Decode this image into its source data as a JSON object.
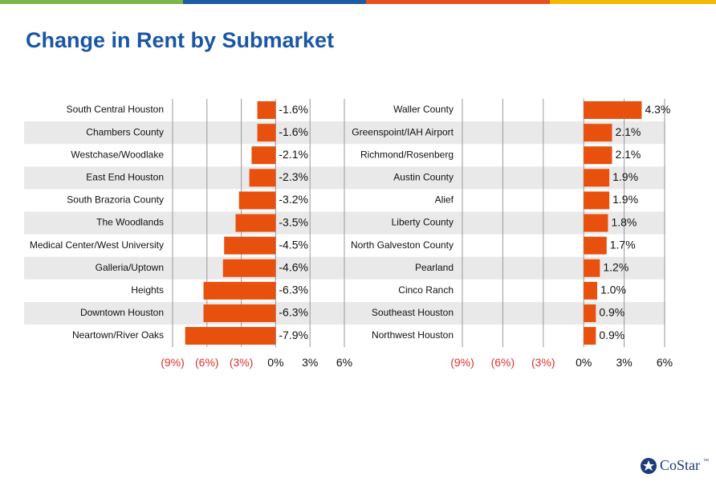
{
  "title": "Change in Rent by Submarket",
  "logo": "CoStar",
  "logo_mark": "™",
  "chart_data": [
    {
      "type": "bar",
      "orientation": "horizontal",
      "categories": [
        "South Central Houston",
        "Chambers County",
        "Westchase/Woodlake",
        "East End Houston",
        "South Brazoria County",
        "The Woodlands",
        "Medical Center/West University",
        "Galleria/Uptown",
        "Heights",
        "Downtown Houston",
        "Neartown/River Oaks"
      ],
      "values": [
        -1.6,
        -1.6,
        -2.1,
        -2.3,
        -3.2,
        -3.5,
        -4.5,
        -4.6,
        -6.3,
        -6.3,
        -7.9
      ],
      "value_labels": [
        "-1.6%",
        "-1.6%",
        "-2.1%",
        "-2.3%",
        "-3.2%",
        "-3.5%",
        "-4.5%",
        "-4.6%",
        "-6.3%",
        "-6.3%",
        "-7.9%"
      ],
      "color": "#e8500e",
      "xlim": [
        -9,
        6
      ],
      "xticks": [
        {
          "value": -9,
          "label": "(9%)"
        },
        {
          "value": -6,
          "label": "(6%)"
        },
        {
          "value": -3,
          "label": "(3%)"
        },
        {
          "value": 0,
          "label": "0%"
        },
        {
          "value": 3,
          "label": "3%"
        },
        {
          "value": 6,
          "label": "6%"
        }
      ],
      "grid": true,
      "negative_tick_color": "#e03030"
    },
    {
      "type": "bar",
      "orientation": "horizontal",
      "categories": [
        "Waller County",
        "Greenspoint/IAH Airport",
        "Richmond/Rosenberg",
        "Austin County",
        "Alief",
        "Liberty County",
        "North Galveston County",
        "Pearland",
        "Cinco Ranch",
        "Southeast Houston",
        "Northwest Houston"
      ],
      "values": [
        4.3,
        2.1,
        2.1,
        1.9,
        1.9,
        1.8,
        1.7,
        1.2,
        1.0,
        0.9,
        0.9
      ],
      "value_labels": [
        "4.3%",
        "2.1%",
        "2.1%",
        "1.9%",
        "1.9%",
        "1.8%",
        "1.7%",
        "1.2%",
        "1.0%",
        "0.9%",
        "0.9%"
      ],
      "color": "#e8500e",
      "xlim": [
        -9,
        6
      ],
      "xticks": [
        {
          "value": -9,
          "label": "(9%)"
        },
        {
          "value": -6,
          "label": "(6%)"
        },
        {
          "value": -3,
          "label": "(3%)"
        },
        {
          "value": 0,
          "label": "0%"
        },
        {
          "value": 3,
          "label": "3%"
        },
        {
          "value": 6,
          "label": "6%"
        }
      ],
      "grid": true,
      "negative_tick_color": "#e03030"
    }
  ]
}
